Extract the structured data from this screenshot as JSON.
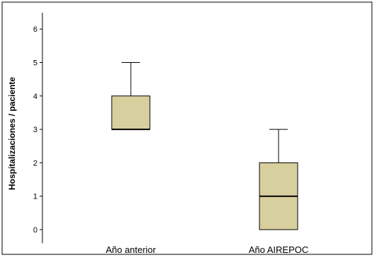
{
  "chart_data": {
    "type": "box",
    "title": "",
    "xlabel": "",
    "ylabel": "Hospitalizaciones / paciente",
    "ylim": [
      -0.3,
      6.3
    ],
    "yticks": [
      0,
      1,
      2,
      3,
      4,
      5,
      6
    ],
    "grid": false,
    "categories": [
      "Año anterior",
      "Año AIREPOC"
    ],
    "boxes": [
      {
        "category": "Año anterior",
        "whisker_low": 3,
        "q1": 3,
        "median": 3,
        "q3": 4,
        "whisker_high": 5
      },
      {
        "category": "Año AIREPOC",
        "whisker_low": 0,
        "q1": 0,
        "median": 1,
        "q3": 2,
        "whisker_high": 3
      }
    ],
    "box_fill": "#d8cf9e",
    "box_stroke": "#000000"
  },
  "ytick_labels": [
    "0",
    "1",
    "2",
    "3",
    "4",
    "5",
    "6"
  ]
}
